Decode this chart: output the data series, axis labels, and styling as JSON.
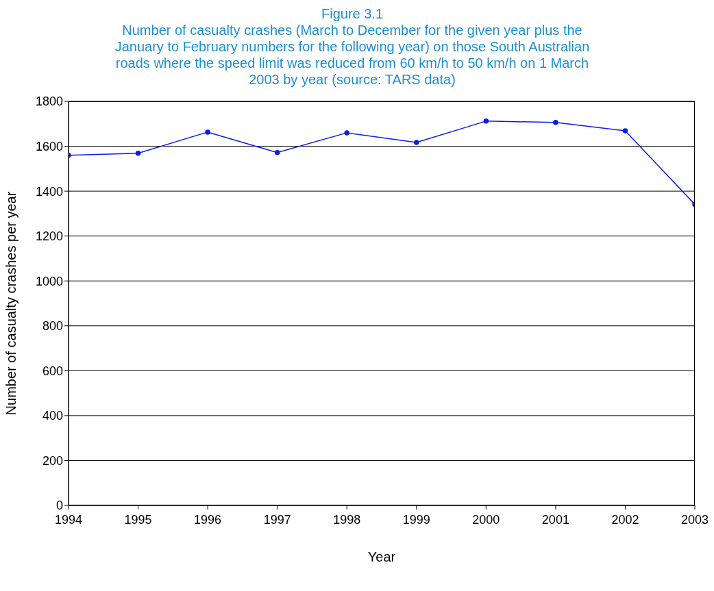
{
  "chart_data": {
    "type": "line",
    "title": "Figure 3.1",
    "subtitle": "Number of casualty crashes (March to December for the given year plus the January to February numbers for the following year) on those South Australian roads where the speed limit was reduced from 60 km/h to 50 km/h on 1 March 2003 by year (source: TARS data)",
    "xlabel": "Year",
    "ylabel": "Number of casualty crashes per year",
    "x": [
      1994,
      1995,
      1996,
      1997,
      1998,
      1999,
      2000,
      2001,
      2002,
      2003
    ],
    "series": [
      {
        "color": "#0a1ee6",
        "values": [
          1560,
          1569,
          1663,
          1572,
          1660,
          1617,
          1712,
          1706,
          1669,
          1341
        ]
      }
    ],
    "xlim": [
      1994,
      2003
    ],
    "xticks": [
      1994,
      1995,
      1996,
      1997,
      1998,
      1999,
      2000,
      2001,
      2002,
      2003
    ],
    "ylim": [
      0,
      1800
    ],
    "yticks": [
      0,
      200,
      400,
      600,
      800,
      1000,
      1200,
      1400,
      1600,
      1800
    ],
    "grid": "y",
    "marker": "circle",
    "line_style": "solid"
  }
}
